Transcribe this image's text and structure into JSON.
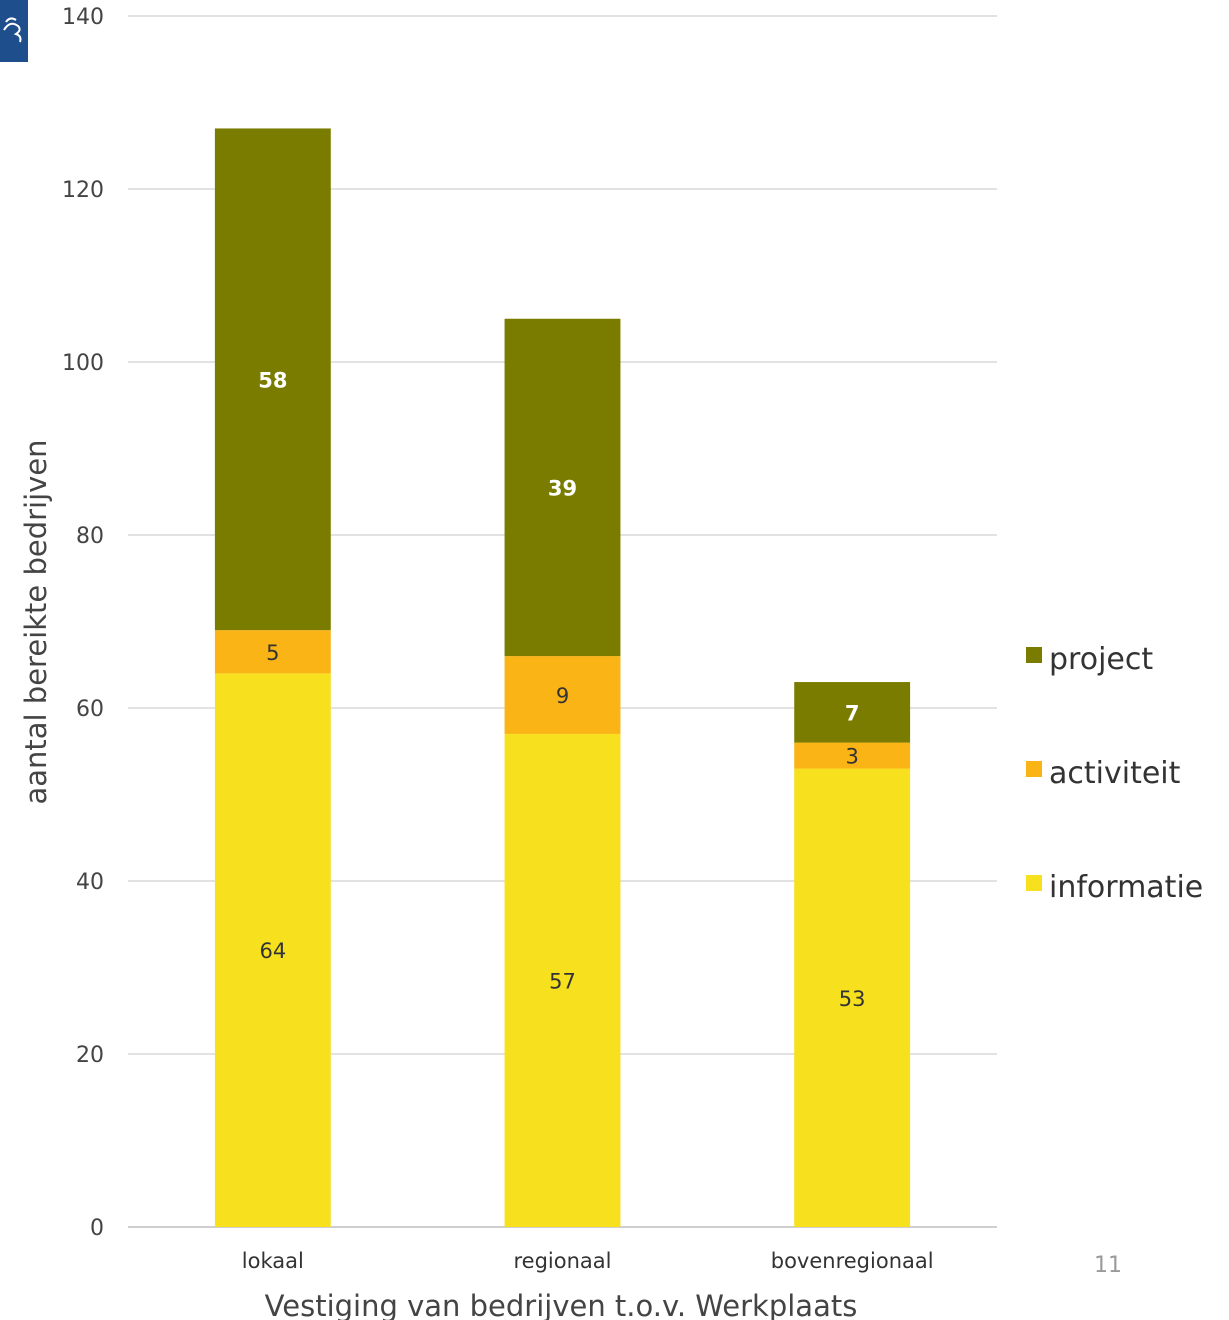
{
  "chart_data": {
    "type": "bar",
    "stacked": true,
    "categories": [
      "lokaal",
      "regionaal",
      "bovenregionaal"
    ],
    "series": [
      {
        "name": "informatie",
        "values": [
          64,
          57,
          53
        ],
        "color": "#f7e01e",
        "label_color": "#333333",
        "label_bold": false
      },
      {
        "name": "activiteit",
        "values": [
          5,
          9,
          3
        ],
        "color": "#fbb415",
        "label_color": "#333333",
        "label_bold": false
      },
      {
        "name": "project",
        "values": [
          58,
          39,
          7
        ],
        "color": "#7a7c00",
        "label_color": "#ffffff",
        "label_bold": true
      }
    ],
    "xlabel": "Vestiging van bedrijven t.o.v. Werkplaats",
    "ylabel": "aantal bereikte bedrijven",
    "ylim": [
      0,
      140
    ],
    "yticks": [
      0,
      20,
      40,
      60,
      80,
      100,
      120,
      140
    ],
    "grid": true,
    "legend_position": "right"
  },
  "page": {
    "page_number": "11",
    "logo_icon": "lion-crest-icon",
    "logo_color": "#1f4e8c"
  }
}
